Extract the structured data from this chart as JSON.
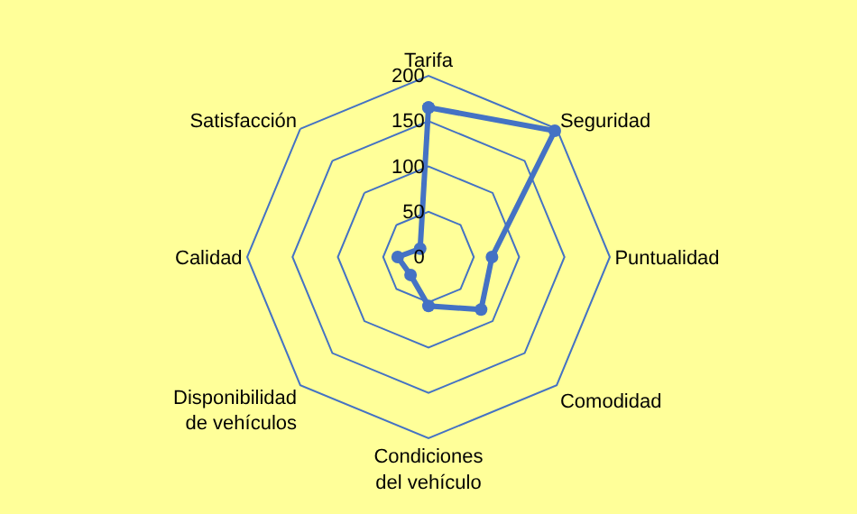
{
  "chart_data": {
    "type": "radar",
    "categories": [
      "Tarifa",
      "Seguridad",
      "Puntualidad",
      "Comodidad",
      "Condiciones del vehículo",
      "Disponibilidad de vehículos",
      "Calidad",
      "Satisfacción"
    ],
    "series": [
      {
        "color": "#4472c4",
        "values": [
          165,
          197,
          70,
          82,
          54,
          28,
          34,
          13
        ]
      }
    ],
    "ylim": [
      0,
      200
    ],
    "yticks": [
      0,
      50,
      100,
      150,
      200
    ],
    "grid": true,
    "marker": "circle",
    "line_style": "solid"
  }
}
